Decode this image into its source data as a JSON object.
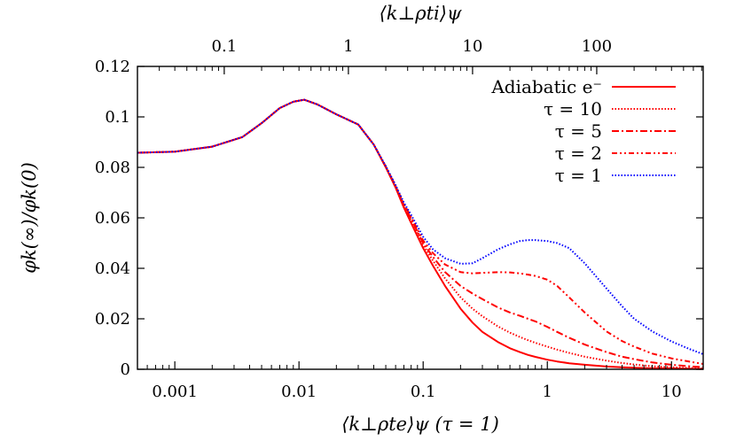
{
  "chart_data": {
    "type": "line",
    "xlabel": "⟨k⊥ρte⟩ψ (τ = 1)",
    "x2label": "⟨k⊥ρti⟩ψ",
    "ylabel": "φk(∞)/φk(0)",
    "xscale": "log",
    "xlim": [
      0.0005,
      18
    ],
    "ylim": [
      0,
      0.12
    ],
    "grid": false,
    "legend_position": "top-right",
    "yticks": [
      "0",
      "0.02",
      "0.04",
      "0.06",
      "0.08",
      "0.1",
      "0.12"
    ],
    "xticks": [
      "0.001",
      "0.01",
      "0.1",
      "1",
      "10"
    ],
    "x2ticks": [
      "0.1",
      "1",
      "10",
      "100"
    ],
    "x": [
      0.0005,
      0.001,
      0.002,
      0.0035,
      0.005,
      0.007,
      0.009,
      0.011,
      0.014,
      0.02,
      0.03,
      0.04,
      0.05,
      0.06,
      0.07,
      0.08,
      0.1,
      0.12,
      0.15,
      0.2,
      0.25,
      0.3,
      0.4,
      0.5,
      0.6,
      0.7,
      0.8,
      1.0,
      1.2,
      1.5,
      2,
      3,
      4,
      5,
      7,
      10,
      14,
      18
    ],
    "series": [
      {
        "name": "Adiabatic e⁻",
        "color": "#ff0000",
        "dash": "solid",
        "values": [
          0.0858,
          0.0862,
          0.0882,
          0.092,
          0.0975,
          0.1035,
          0.106,
          0.1068,
          0.105,
          0.101,
          0.097,
          0.089,
          0.08,
          0.072,
          0.064,
          0.058,
          0.048,
          0.041,
          0.033,
          0.024,
          0.0185,
          0.0148,
          0.0108,
          0.0083,
          0.0068,
          0.0057,
          0.0049,
          0.0038,
          0.0031,
          0.0024,
          0.0018,
          0.0011,
          0.0008,
          0.0006,
          0.0004,
          0.0003,
          0.0002,
          0.0001
        ]
      },
      {
        "name": "τ = 10",
        "color": "#ff0000",
        "dash": "dotted",
        "values": [
          0.0858,
          0.0862,
          0.0882,
          0.092,
          0.0975,
          0.1035,
          0.106,
          0.1068,
          0.105,
          0.101,
          0.097,
          0.089,
          0.08,
          0.0722,
          0.0645,
          0.059,
          0.0492,
          0.043,
          0.036,
          0.0285,
          0.024,
          0.021,
          0.017,
          0.0145,
          0.0128,
          0.0115,
          0.0105,
          0.009,
          0.0078,
          0.0065,
          0.005,
          0.0034,
          0.0025,
          0.0019,
          0.0012,
          0.0008,
          0.0005,
          0.0003
        ]
      },
      {
        "name": "τ = 5",
        "color": "#ff0000",
        "dash": "dashdot",
        "values": [
          0.0858,
          0.0862,
          0.0882,
          0.092,
          0.0975,
          0.1035,
          0.106,
          0.1068,
          0.105,
          0.101,
          0.097,
          0.089,
          0.0802,
          0.0725,
          0.065,
          0.0597,
          0.05,
          0.0445,
          0.0385,
          0.033,
          0.03,
          0.0278,
          0.0245,
          0.0225,
          0.0212,
          0.02,
          0.019,
          0.0168,
          0.0148,
          0.0125,
          0.0098,
          0.0068,
          0.005,
          0.004,
          0.0027,
          0.0018,
          0.0012,
          0.0008
        ]
      },
      {
        "name": "τ = 2",
        "color": "#ff0000",
        "dash": "dashdotdot",
        "values": [
          0.0858,
          0.0862,
          0.0882,
          0.092,
          0.0975,
          0.1035,
          0.106,
          0.1068,
          0.105,
          0.101,
          0.097,
          0.089,
          0.0803,
          0.0727,
          0.0655,
          0.0604,
          0.051,
          0.046,
          0.0415,
          0.0385,
          0.038,
          0.0382,
          0.0385,
          0.0384,
          0.038,
          0.0375,
          0.037,
          0.0355,
          0.033,
          0.0285,
          0.0225,
          0.015,
          0.0112,
          0.009,
          0.0062,
          0.0043,
          0.003,
          0.0021
        ]
      },
      {
        "name": "τ = 1",
        "color": "#0000ff",
        "dash": "dotted",
        "values": [
          0.0858,
          0.0862,
          0.0882,
          0.092,
          0.0975,
          0.1035,
          0.106,
          0.1068,
          0.105,
          0.101,
          0.097,
          0.089,
          0.0805,
          0.073,
          0.066,
          0.0612,
          0.0525,
          0.0475,
          0.044,
          0.0418,
          0.042,
          0.044,
          0.0475,
          0.0495,
          0.0508,
          0.0512,
          0.0512,
          0.0508,
          0.05,
          0.048,
          0.042,
          0.032,
          0.025,
          0.02,
          0.015,
          0.011,
          0.008,
          0.006
        ]
      }
    ]
  }
}
